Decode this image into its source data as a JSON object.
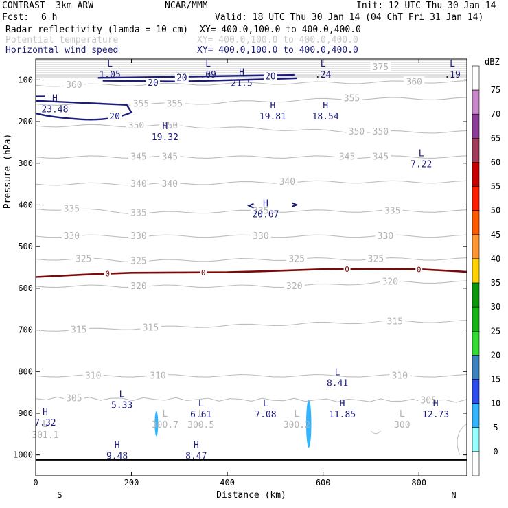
{
  "header": {
    "model": "CONTRAST  3km ARW",
    "org": "NCAR/MMM",
    "init": "Init: 12 UTC Thu 30 Jan 14",
    "fcst_label": "Fcst:",
    "fcst_value": "6 h",
    "valid": "Valid: 18 UTC Thu 30 Jan 14 (04 ChT Fri 31 Jan 14)",
    "fields": [
      {
        "name": "Radar reflectivity (lamda = 10 cm)",
        "xy": "XY= 400.0,100.0 to 400.0,400.0",
        "color": "#000000"
      },
      {
        "name": "Potential temperature",
        "xy": "XY= 400.0,100.0 to 400.0,400.0",
        "color": "#c8c8c8"
      },
      {
        "name": "Horizontal wind speed",
        "xy": "XY= 400.0,100.0 to 400.0,400.0",
        "color": "#1c1c7a"
      }
    ]
  },
  "chart_data": {
    "type": "contour cross-section",
    "xlabel": "Distance (km)",
    "ylabel": "Pressure (hPa)",
    "xlim": [
      0,
      900
    ],
    "ylim": [
      1050,
      50
    ],
    "x_ticks": [
      0,
      200,
      400,
      600,
      800
    ],
    "y_ticks": [
      100,
      200,
      300,
      400,
      500,
      600,
      700,
      800,
      900,
      1000
    ],
    "x_end_labels": {
      "left": "S",
      "right": "N"
    },
    "colorbar": {
      "title": "dBZ",
      "levels": [
        0,
        5,
        10,
        15,
        20,
        25,
        30,
        35,
        40,
        45,
        50,
        55,
        60,
        65,
        70,
        75
      ],
      "colors": [
        "#ffffff",
        "#96ffff",
        "#32b4ff",
        "#2c4cf0",
        "#3c82be",
        "#32dc32",
        "#14b414",
        "#0a960a",
        "#ffd200",
        "#ff9632",
        "#ff5a00",
        "#ff1e00",
        "#c80000",
        "#a03c5a",
        "#8c3c96",
        "#c887c8",
        "#ffffff"
      ]
    },
    "theta_contours": [
      {
        "value": 360,
        "labels": [
          [
            80,
            113
          ],
          [
            790,
            105
          ]
        ]
      },
      {
        "value": 355,
        "labels": [
          [
            220,
            158
          ],
          [
            290,
            158
          ],
          [
            660,
            145
          ]
        ]
      },
      {
        "value": 350,
        "labels": [
          [
            210,
            210
          ],
          [
            280,
            210
          ],
          [
            670,
            225
          ],
          [
            720,
            225
          ]
        ]
      },
      {
        "value": 345,
        "labels": [
          [
            215,
            285
          ],
          [
            280,
            285
          ],
          [
            650,
            285
          ],
          [
            720,
            285
          ]
        ]
      },
      {
        "value": 340,
        "labels": [
          [
            215,
            350
          ],
          [
            280,
            350
          ],
          [
            525,
            345
          ]
        ]
      },
      {
        "value": 335,
        "labels": [
          [
            75,
            410
          ],
          [
            215,
            420
          ],
          [
            470,
            415
          ],
          [
            745,
            415
          ]
        ]
      },
      {
        "value": 330,
        "labels": [
          [
            75,
            475
          ],
          [
            215,
            475
          ],
          [
            470,
            475
          ],
          [
            730,
            475
          ]
        ]
      },
      {
        "value": 325,
        "labels": [
          [
            100,
            530
          ],
          [
            215,
            535
          ],
          [
            545,
            530
          ],
          [
            710,
            530
          ]
        ]
      },
      {
        "value": 320,
        "labels": [
          [
            215,
            595
          ],
          [
            540,
            595
          ],
          [
            740,
            585
          ]
        ]
      },
      {
        "value": 315,
        "labels": [
          [
            90,
            700
          ],
          [
            240,
            695
          ],
          [
            750,
            680
          ]
        ]
      },
      {
        "value": 310,
        "labels": [
          [
            120,
            810
          ],
          [
            255,
            810
          ],
          [
            760,
            810
          ]
        ]
      },
      {
        "value": 305,
        "labels": [
          [
            80,
            865
          ],
          [
            820,
            870
          ]
        ]
      },
      {
        "value": 375,
        "labels": [
          [
            720,
            70
          ]
        ]
      }
    ],
    "theta_extrema": [
      {
        "letter": "L",
        "value": "300.7",
        "x": 270,
        "y": 915
      },
      {
        "letter": "L",
        "value": "300.5",
        "x": 345,
        "y": 915
      },
      {
        "letter": "L",
        "value": "300.2",
        "x": 545,
        "y": 915
      },
      {
        "letter": "L",
        "value": "300",
        "x": 765,
        "y": 915
      },
      {
        "letter": "L",
        "value": "301.1",
        "x": 20,
        "y": 940
      }
    ],
    "wind_contour_labels": [
      {
        "value": 20,
        "x": 305,
        "y": 95
      },
      {
        "value": 20,
        "x": 245,
        "y": 108
      },
      {
        "value": 20,
        "x": 490,
        "y": 92
      },
      {
        "value": 20,
        "x": 165,
        "y": 188
      }
    ],
    "wind_extrema": [
      {
        "letter": "L",
        "value": "1.05",
        "x": 155,
        "y": 75
      },
      {
        "letter": "L",
        "value": ".09",
        "x": 360,
        "y": 75
      },
      {
        "letter": "H",
        "value": "21.5",
        "x": 430,
        "y": 95
      },
      {
        "letter": "L",
        "value": ".24",
        "x": 600,
        "y": 75
      },
      {
        "letter": "L",
        "value": ".19",
        "x": 870,
        "y": 75
      },
      {
        "letter": "H",
        "value": "23.48",
        "x": 40,
        "y": 158
      },
      {
        "letter": "H",
        "value": "19.81",
        "x": 495,
        "y": 175
      },
      {
        "letter": "H",
        "value": "18.54",
        "x": 605,
        "y": 175
      },
      {
        "letter": "H",
        "value": "19.32",
        "x": 270,
        "y": 225
      },
      {
        "letter": "L",
        "value": "7.22",
        "x": 805,
        "y": 290
      },
      {
        "letter": "H",
        "value": "20.67",
        "x": 480,
        "y": 410
      },
      {
        "letter": "L",
        "value": "8.41",
        "x": 630,
        "y": 815
      },
      {
        "letter": "L",
        "value": "5.33",
        "x": 180,
        "y": 868
      },
      {
        "letter": "L",
        "value": "6.61",
        "x": 345,
        "y": 890
      },
      {
        "letter": "L",
        "value": "7.08",
        "x": 480,
        "y": 890
      },
      {
        "letter": "H",
        "value": "11.85",
        "x": 640,
        "y": 890
      },
      {
        "letter": "H",
        "value": "12.73",
        "x": 835,
        "y": 890
      },
      {
        "letter": "H",
        "value": "7.32",
        "x": 20,
        "y": 910
      },
      {
        "letter": "H",
        "value": "9.48",
        "x": 170,
        "y": 990
      },
      {
        "letter": "H",
        "value": "8.47",
        "x": 335,
        "y": 990
      }
    ],
    "zero_line_label": "0",
    "zero_line": [
      [
        0,
        573
      ],
      [
        100,
        567
      ],
      [
        200,
        563
      ],
      [
        300,
        562
      ],
      [
        400,
        562
      ],
      [
        500,
        558
      ],
      [
        600,
        555
      ],
      [
        700,
        553
      ],
      [
        800,
        555
      ],
      [
        900,
        560
      ]
    ],
    "reflectivity_cells": [
      {
        "x": 252,
        "p": 925,
        "dx": 4,
        "dp": 60,
        "dbz": 5
      },
      {
        "x": 570,
        "p": 925,
        "dx": 6,
        "dp": 115,
        "dbz": 5
      }
    ]
  }
}
